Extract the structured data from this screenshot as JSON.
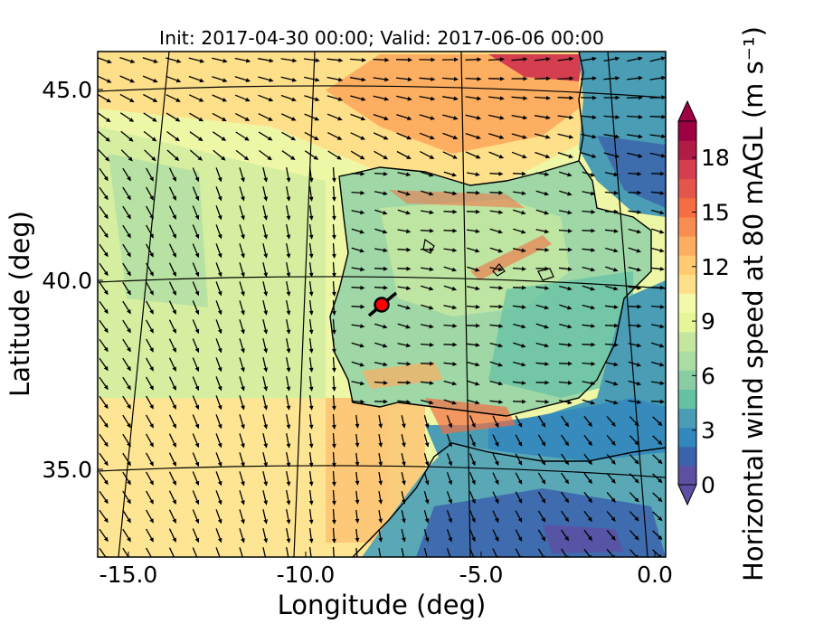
{
  "figure": {
    "title": "Init: 2017-04-30 00:00; Valid: 2017-06-06 00:00",
    "xlabel": "Longitude (deg)",
    "ylabel": "Latitude (deg)",
    "x_ticks": [
      "-15.0",
      "-10.0",
      "-5.0",
      "0.0"
    ],
    "y_ticks": [
      "45.0",
      "40.0",
      "35.0"
    ]
  },
  "colorbar": {
    "label": "Horizontal wind speed at 80 mAGL (m s⁻¹)",
    "ticks": [
      "0",
      "3",
      "6",
      "9",
      "12",
      "15",
      "18"
    ],
    "colors": [
      "#5e4fa2",
      "#3b62ad",
      "#3288bd",
      "#4a9db4",
      "#66c2a5",
      "#8acda4",
      "#abdda4",
      "#c4e69e",
      "#e6f598",
      "#f2f9a8",
      "#fee08b",
      "#fecb72",
      "#fdae61",
      "#f88d52",
      "#f46d43",
      "#e4564b",
      "#d53e4f",
      "#b11c47",
      "#9e0142"
    ]
  },
  "chart_data": {
    "type": "heatmap",
    "title": "Init: 2017-04-30 00:00; Valid: 2017-06-06 00:00",
    "xlabel": "Longitude (deg)",
    "ylabel": "Latitude (deg)",
    "xlim": [
      -15.9,
      0.1
    ],
    "ylim": [
      32.7,
      45.9
    ],
    "x_ticks": [
      -15.0,
      -10.0,
      -5.0,
      0.0
    ],
    "y_ticks": [
      45.0,
      40.0,
      35.0
    ],
    "colorbar_range": [
      0,
      20
    ],
    "colorbar_ticks": [
      0,
      3,
      6,
      9,
      12,
      15,
      18
    ],
    "grid": true,
    "site_marker": {
      "lon": -7.6,
      "lat": 39.3,
      "color": "#ff0000"
    }
  }
}
